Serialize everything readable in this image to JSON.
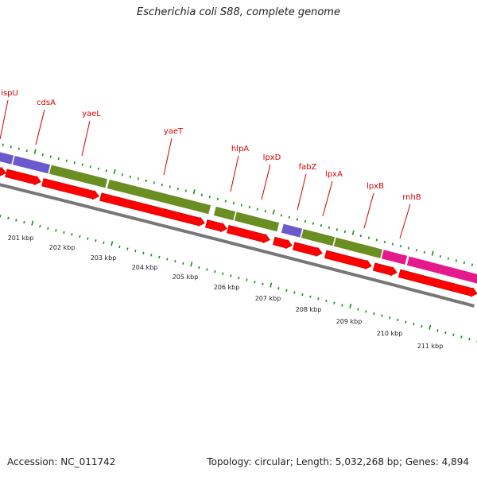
{
  "title": "Escherichia coli S88, complete genome",
  "footer": {
    "accession": "Accession: NC_011742",
    "topology": "Topology: circular; Length: 5,032,268 bp; Genes: 4,894"
  },
  "colors": {
    "gene_label": "#d40000",
    "forward_gene": "#ff0000",
    "purple_track": "#6a5acd",
    "green_track": "#6b8e23",
    "magenta_track": "#e6198c",
    "backbone": "#777777",
    "tick": "#1a8a1a"
  },
  "gene_labels": [
    "ispU",
    "cdsA",
    "yaeL",
    "yaeT",
    "hlpA",
    "lpxD",
    "fabZ",
    "lpxA",
    "lpxB",
    "rnhB"
  ],
  "kbp_labels": [
    "201 kbp",
    "202 kbp",
    "203 kbp",
    "204 kbp",
    "205 kbp",
    "206 kbp",
    "207 kbp",
    "208 kbp",
    "209 kbp",
    "210 kbp",
    "211 kbp"
  ]
}
